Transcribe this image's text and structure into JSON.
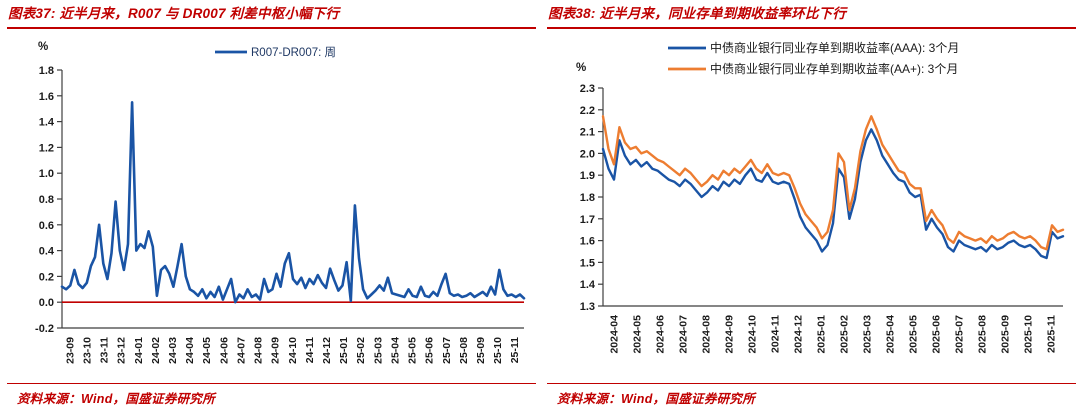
{
  "colors": {
    "red": "#C00000",
    "blue": "#1A54A5",
    "orange": "#ED7D31",
    "axis": "#3F3F3F",
    "tick_text": "#1A1A1A"
  },
  "panels": [
    {
      "title": "图表37: 近半月来，R007 与 DR007 利差中枢小幅下行",
      "source": "资料来源：Wind，国盛证券研究所"
    },
    {
      "title": "图表38: 近半月来，同业存单到期收益率环比下行",
      "source": "资料来源：Wind，国盛证券研究所"
    }
  ],
  "chart_data": [
    {
      "type": "line",
      "title": "图表37: 近半月来，R007 与 DR007 利差中枢小幅下行",
      "unit": "%",
      "ylim": [
        -0.2,
        1.8
      ],
      "ytick_labels": [
        "-0.2",
        "0.0",
        "0.2",
        "0.4",
        "0.6",
        "0.8",
        "1.0",
        "1.2",
        "1.4",
        "1.6",
        "1.8"
      ],
      "x_labels": [
        "23-09",
        "23-10",
        "23-11",
        "23-12",
        "24-01",
        "24-02",
        "24-03",
        "24-04",
        "24-05",
        "24-06",
        "24-07",
        "24-08",
        "24-09",
        "24-10",
        "24-11",
        "24-12",
        "25-01",
        "25-02",
        "25-03",
        "25-04",
        "25-05",
        "25-06",
        "25-07",
        "25-08",
        "25-09",
        "25-10",
        "25-11"
      ],
      "zero_line": true,
      "grid": false,
      "legend_position": "top-center",
      "legend_text_color": "#1F3864",
      "series": [
        {
          "name": "R007-DR007: 周",
          "color": "#1A54A5",
          "values": [
            0.12,
            0.1,
            0.13,
            0.25,
            0.14,
            0.11,
            0.15,
            0.28,
            0.35,
            0.6,
            0.3,
            0.18,
            0.38,
            0.78,
            0.4,
            0.25,
            0.45,
            1.55,
            0.4,
            0.45,
            0.42,
            0.55,
            0.43,
            0.05,
            0.25,
            0.28,
            0.22,
            0.12,
            0.28,
            0.45,
            0.2,
            0.1,
            0.08,
            0.05,
            0.1,
            0.03,
            0.08,
            0.04,
            0.12,
            0.02,
            0.1,
            0.18,
            0.0,
            0.06,
            0.03,
            0.1,
            0.04,
            0.06,
            0.02,
            0.18,
            0.08,
            0.1,
            0.22,
            0.12,
            0.3,
            0.38,
            0.18,
            0.14,
            0.19,
            0.11,
            0.18,
            0.14,
            0.21,
            0.15,
            0.11,
            0.26,
            0.17,
            0.09,
            0.13,
            0.31,
            0.01,
            0.75,
            0.34,
            0.1,
            0.03,
            0.06,
            0.09,
            0.13,
            0.09,
            0.19,
            0.07,
            0.06,
            0.05,
            0.04,
            0.1,
            0.05,
            0.04,
            0.12,
            0.05,
            0.04,
            0.08,
            0.05,
            0.14,
            0.22,
            0.07,
            0.05,
            0.06,
            0.04,
            0.05,
            0.07,
            0.04,
            0.06,
            0.08,
            0.05,
            0.12,
            0.06,
            0.25,
            0.1,
            0.05,
            0.06,
            0.04,
            0.06,
            0.03
          ]
        }
      ]
    },
    {
      "type": "line",
      "title": "图表38: 近半月来，同业存单到期收益率环比下行",
      "unit": "%",
      "ylim": [
        1.3,
        2.3
      ],
      "ytick_labels": [
        "1.3",
        "1.4",
        "1.5",
        "1.6",
        "1.7",
        "1.8",
        "1.9",
        "2.0",
        "2.1",
        "2.2",
        "2.3"
      ],
      "x_labels": [
        "2024-04",
        "2024-05",
        "2024-06",
        "2024-07",
        "2024-08",
        "2024-09",
        "2024-10",
        "2024-11",
        "2024-12",
        "2025-01",
        "2025-02",
        "2025-03",
        "2025-04",
        "2025-05",
        "2025-06",
        "2025-07",
        "2025-08",
        "2025-09",
        "2025-10",
        "2025-11"
      ],
      "zero_line": false,
      "grid": false,
      "legend_position": "top-left",
      "legend_text_color": "#1A1A1A",
      "series": [
        {
          "name": "中债商业银行同业存单到期收益率(AAA): 3个月",
          "color": "#1A54A5",
          "values": [
            2.02,
            1.93,
            1.88,
            2.06,
            1.99,
            1.95,
            1.97,
            1.94,
            1.96,
            1.93,
            1.92,
            1.9,
            1.88,
            1.87,
            1.85,
            1.88,
            1.86,
            1.83,
            1.8,
            1.82,
            1.85,
            1.83,
            1.87,
            1.85,
            1.88,
            1.86,
            1.9,
            1.93,
            1.88,
            1.87,
            1.91,
            1.87,
            1.86,
            1.87,
            1.86,
            1.79,
            1.71,
            1.66,
            1.63,
            1.6,
            1.55,
            1.58,
            1.68,
            1.93,
            1.89,
            1.7,
            1.79,
            1.96,
            2.06,
            2.11,
            2.06,
            1.99,
            1.95,
            1.91,
            1.88,
            1.87,
            1.82,
            1.8,
            1.81,
            1.65,
            1.7,
            1.66,
            1.63,
            1.57,
            1.55,
            1.6,
            1.58,
            1.57,
            1.56,
            1.57,
            1.55,
            1.58,
            1.56,
            1.57,
            1.59,
            1.6,
            1.58,
            1.57,
            1.58,
            1.56,
            1.53,
            1.52,
            1.64,
            1.61,
            1.62
          ]
        },
        {
          "name": "中债商业银行同业存单到期收益率(AA+): 3个月",
          "color": "#ED7D31",
          "values": [
            2.17,
            2.02,
            1.95,
            2.12,
            2.05,
            2.02,
            2.03,
            2.0,
            2.01,
            1.99,
            1.97,
            1.96,
            1.94,
            1.92,
            1.9,
            1.93,
            1.91,
            1.88,
            1.85,
            1.87,
            1.9,
            1.88,
            1.92,
            1.9,
            1.93,
            1.91,
            1.94,
            1.97,
            1.93,
            1.91,
            1.95,
            1.91,
            1.9,
            1.91,
            1.9,
            1.84,
            1.77,
            1.72,
            1.69,
            1.66,
            1.61,
            1.64,
            1.74,
            2.0,
            1.96,
            1.74,
            1.84,
            2.01,
            2.11,
            2.17,
            2.11,
            2.04,
            2.0,
            1.96,
            1.92,
            1.91,
            1.86,
            1.84,
            1.84,
            1.69,
            1.74,
            1.7,
            1.67,
            1.61,
            1.59,
            1.64,
            1.62,
            1.61,
            1.6,
            1.61,
            1.59,
            1.62,
            1.6,
            1.61,
            1.63,
            1.64,
            1.62,
            1.61,
            1.62,
            1.6,
            1.57,
            1.56,
            1.67,
            1.64,
            1.65
          ]
        }
      ]
    }
  ]
}
